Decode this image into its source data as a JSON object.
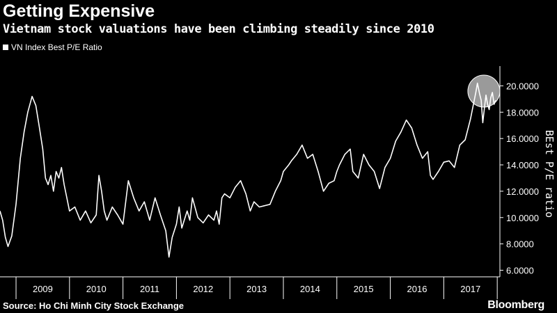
{
  "header": {
    "title": "Getting Expensive",
    "subtitle": "Vietnam stock valuations have been climbing steadily since 2010"
  },
  "legend": {
    "label": "VN Index Best P/E Ratio"
  },
  "footer": {
    "source": "Source: Ho Chi Minh City Stock Exchange",
    "brand": "Bloomberg"
  },
  "colors": {
    "background": "#000000",
    "line": "#ffffff",
    "axis": "#ffffff",
    "highlight": "#b5b5b5"
  },
  "chart_data": {
    "type": "line",
    "title": "Getting Expensive",
    "subtitle": "Vietnam stock valuations have been climbing steadily since 2010",
    "ylabel": "BEst P/E ratio",
    "xlabel": "",
    "ylim": [
      5.5,
      21.5
    ],
    "xlim": [
      2008.7,
      2018.05
    ],
    "yticks": [
      6,
      8,
      10,
      12,
      14,
      16,
      18,
      20
    ],
    "ytick_labels": [
      "6.0000",
      "8.0000",
      "10.0000",
      "12.0000",
      "14.0000",
      "16.0000",
      "18.0000",
      "20.0000"
    ],
    "xtick_labels": [
      "2009",
      "2010",
      "2011",
      "2012",
      "2013",
      "2014",
      "2015",
      "2016",
      "2017"
    ],
    "legend": "top-left",
    "highlight": {
      "x": 2017.75,
      "y": 19.6,
      "note": "recent peak circled"
    },
    "series": [
      {
        "name": "VN Index Best P/E Ratio",
        "x": [
          2008.7,
          2008.75,
          2008.8,
          2008.85,
          2008.92,
          2009.0,
          2009.08,
          2009.15,
          2009.22,
          2009.3,
          2009.37,
          2009.43,
          2009.5,
          2009.55,
          2009.6,
          2009.65,
          2009.7,
          2009.75,
          2009.8,
          2009.85,
          2009.9,
          2009.95,
          2010.0,
          2010.1,
          2010.2,
          2010.3,
          2010.4,
          2010.5,
          2010.55,
          2010.6,
          2010.65,
          2010.7,
          2010.8,
          2010.9,
          2011.0,
          2011.1,
          2011.2,
          2011.3,
          2011.4,
          2011.5,
          2011.6,
          2011.7,
          2011.8,
          2011.86,
          2011.92,
          2012.0,
          2012.05,
          2012.1,
          2012.2,
          2012.25,
          2012.3,
          2012.4,
          2012.5,
          2012.6,
          2012.7,
          2012.75,
          2012.8,
          2012.85,
          2012.9,
          2013.0,
          2013.1,
          2013.2,
          2013.3,
          2013.38,
          2013.45,
          2013.55,
          2013.65,
          2013.75,
          2013.85,
          2013.95,
          2014.0,
          2014.1,
          2014.15,
          2014.25,
          2014.35,
          2014.45,
          2014.55,
          2014.65,
          2014.75,
          2014.85,
          2014.95,
          2015.0,
          2015.05,
          2015.15,
          2015.25,
          2015.3,
          2015.4,
          2015.5,
          2015.6,
          2015.7,
          2015.8,
          2015.9,
          2016.0,
          2016.1,
          2016.2,
          2016.3,
          2016.4,
          2016.5,
          2016.6,
          2016.7,
          2016.75,
          2016.8,
          2016.9,
          2017.0,
          2017.1,
          2017.2,
          2017.3,
          2017.4,
          2017.5,
          2017.55,
          2017.6,
          2017.63,
          2017.67,
          2017.7,
          2017.73,
          2017.76,
          2017.79,
          2017.82,
          2017.85,
          2017.88,
          2017.91,
          2017.94,
          2017.97
        ],
        "values": [
          10.5,
          9.8,
          8.5,
          7.8,
          8.6,
          11.0,
          14.5,
          16.5,
          18.0,
          19.2,
          18.5,
          17.0,
          15.2,
          13.0,
          12.5,
          13.2,
          12.0,
          13.5,
          13.0,
          13.8,
          12.5,
          11.5,
          10.5,
          10.8,
          9.8,
          10.5,
          9.6,
          10.2,
          13.2,
          12.0,
          10.5,
          9.8,
          10.8,
          10.2,
          9.5,
          12.8,
          11.5,
          10.5,
          11.2,
          9.8,
          11.5,
          10.2,
          9.0,
          7.0,
          8.5,
          9.5,
          10.8,
          9.2,
          10.5,
          9.8,
          11.5,
          10.0,
          9.6,
          10.2,
          9.8,
          10.5,
          9.5,
          11.5,
          11.8,
          11.5,
          12.3,
          12.8,
          11.8,
          10.5,
          11.2,
          10.8,
          10.9,
          11.0,
          12.0,
          12.8,
          13.5,
          14.0,
          14.3,
          14.8,
          15.5,
          14.5,
          14.8,
          13.5,
          12.0,
          12.6,
          12.8,
          13.5,
          14.0,
          14.8,
          15.2,
          13.5,
          13.0,
          14.8,
          14.0,
          13.5,
          12.2,
          13.8,
          14.5,
          15.8,
          16.5,
          17.4,
          16.8,
          15.5,
          14.5,
          15.0,
          13.2,
          12.9,
          13.5,
          14.2,
          14.3,
          13.8,
          15.5,
          15.9,
          17.5,
          18.5,
          19.5,
          20.2,
          19.4,
          18.9,
          17.2,
          18.3,
          19.3,
          18.6,
          18.2,
          19.1,
          19.5,
          18.6,
          18.9
        ]
      }
    ]
  }
}
